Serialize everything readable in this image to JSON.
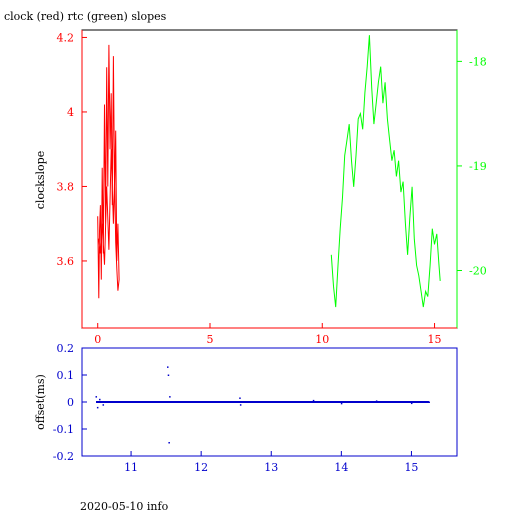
{
  "title": "clock (red) rtc (green) slopes",
  "footer": "2020-05-10 info",
  "colors": {
    "clock": "#ff0000",
    "rtc": "#00ff00",
    "offset": "#0000cc",
    "axes": "#000000"
  },
  "chart_data": [
    {
      "type": "line",
      "title": "clock (red) rtc (green) slopes",
      "ylabel": "clockslope",
      "xlabel": "",
      "grid": false,
      "x_ticks": [
        "0",
        "5",
        "10",
        "15"
      ],
      "xlim": [
        -0.7,
        16.0
      ],
      "left_axis": {
        "ylim": [
          3.42,
          4.22
        ],
        "ticks": [
          "3.6",
          "3.8",
          "4",
          "4.2"
        ],
        "color": "#ff0000"
      },
      "right_axis": {
        "ylim": [
          -20.55,
          -17.7
        ],
        "ticks": [
          "-18",
          "-19",
          "-20"
        ],
        "color": "#00ff00"
      },
      "series": [
        {
          "axis": "left",
          "color": "#ff0000",
          "x": [
            0.0,
            0.05,
            0.08,
            0.12,
            0.16,
            0.2,
            0.25,
            0.3,
            0.35,
            0.4,
            0.45,
            0.5,
            0.55,
            0.6,
            0.65,
            0.7,
            0.75,
            0.8,
            0.85,
            0.9,
            0.95,
            0.9,
            0.85,
            0.8,
            0.75,
            0.7,
            0.6,
            0.5,
            0.4,
            0.3,
            0.2,
            0.1,
            0.05
          ],
          "y": [
            3.72,
            3.5,
            3.68,
            3.75,
            3.55,
            3.85,
            3.62,
            4.02,
            3.7,
            4.12,
            3.8,
            4.18,
            3.9,
            4.05,
            3.75,
            4.15,
            3.78,
            3.95,
            3.6,
            3.7,
            3.55,
            3.52,
            3.58,
            3.65,
            3.82,
            3.7,
            3.9,
            3.63,
            3.8,
            3.59,
            3.7,
            3.62,
            3.66
          ]
        },
        {
          "axis": "right",
          "color": "#00ff00",
          "x": [
            10.4,
            10.5,
            10.6,
            10.7,
            10.8,
            10.9,
            11.0,
            11.1,
            11.2,
            11.3,
            11.4,
            11.5,
            11.6,
            11.7,
            11.8,
            11.9,
            12.0,
            12.1,
            12.2,
            12.3,
            12.4,
            12.5,
            12.6,
            12.7,
            12.8,
            12.9,
            13.0,
            13.1,
            13.2,
            13.3,
            13.4,
            13.5,
            13.6,
            13.7,
            13.8,
            13.9,
            14.0,
            14.1,
            14.2,
            14.3,
            14.4,
            14.5,
            14.6,
            14.7,
            14.8,
            14.9,
            15.0,
            15.1,
            15.2,
            15.25
          ],
          "y": [
            -19.85,
            -20.15,
            -20.35,
            -19.95,
            -19.6,
            -19.3,
            -18.9,
            -18.75,
            -18.6,
            -18.95,
            -19.2,
            -18.9,
            -18.55,
            -18.5,
            -18.65,
            -18.3,
            -18.05,
            -17.75,
            -18.25,
            -18.6,
            -18.4,
            -18.2,
            -18.05,
            -18.4,
            -18.2,
            -18.55,
            -18.75,
            -18.95,
            -18.85,
            -19.1,
            -18.95,
            -19.25,
            -19.15,
            -19.55,
            -19.85,
            -19.5,
            -19.2,
            -19.7,
            -19.95,
            -20.05,
            -20.2,
            -20.35,
            -20.2,
            -20.25,
            -19.95,
            -19.6,
            -19.75,
            -19.65,
            -19.95,
            -20.1
          ]
        }
      ]
    },
    {
      "type": "scatter",
      "ylabel": "offset(ms)",
      "xlabel": "",
      "grid": false,
      "x_ticks": [
        "11",
        "12",
        "13",
        "14",
        "15"
      ],
      "xlim": [
        10.3,
        15.65
      ],
      "ylim": [
        -0.2,
        0.2
      ],
      "y_ticks": [
        "-0.2",
        "-0.1",
        "0",
        "0.1",
        "0.2"
      ],
      "color": "#0000cc",
      "series": [
        {
          "x": [
            10.5,
            10.52,
            10.55,
            10.6,
            11.52,
            11.53,
            11.54,
            11.55,
            12.55,
            12.56,
            13.6,
            14.0,
            14.5,
            15.0,
            15.25
          ],
          "y": [
            0.02,
            -0.02,
            0.01,
            -0.01,
            0.13,
            0.1,
            -0.15,
            0.02,
            0.015,
            -0.01,
            0.006,
            -0.005,
            0.004,
            -0.004,
            0.0
          ]
        }
      ]
    }
  ]
}
